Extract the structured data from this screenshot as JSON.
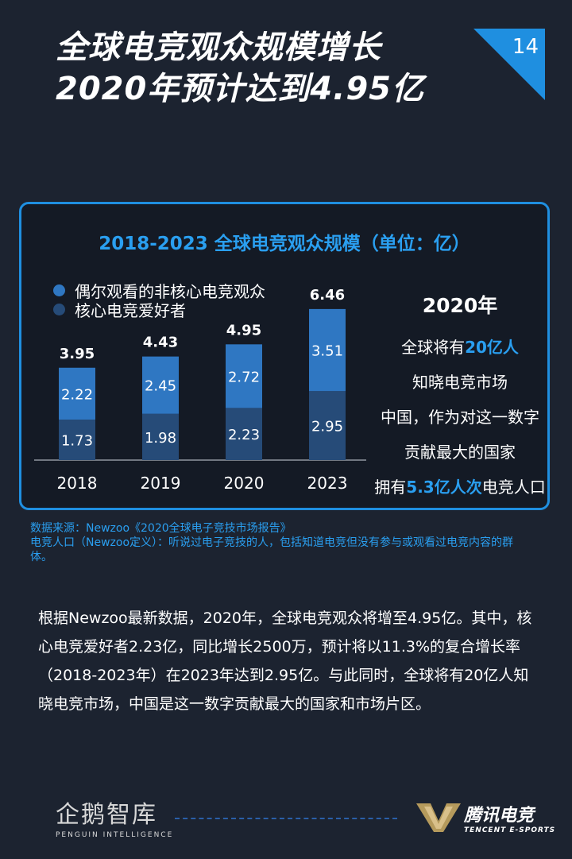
{
  "title": {
    "line1": "全球电竞观众规模增长",
    "line2": "2020年预计达到4.95亿"
  },
  "page_number": "14",
  "colors": {
    "accent": "#1f8fe0",
    "series_light": "#2f77c2",
    "series_dark": "#264b78",
    "background": "#1c2330"
  },
  "chart_data": {
    "type": "bar",
    "stacked": true,
    "title": "2018-2023 全球电竞观众规模（单位：亿）",
    "categories": [
      "2018",
      "2019",
      "2020",
      "2023"
    ],
    "series": [
      {
        "name": "核心电竞爱好者",
        "values": [
          1.73,
          1.98,
          2.23,
          2.95
        ]
      },
      {
        "name": "偶尔观看的非核心电竞观众",
        "values": [
          2.22,
          2.45,
          2.72,
          3.51
        ]
      }
    ],
    "totals": [
      3.95,
      4.43,
      4.95,
      6.46
    ],
    "value_labels": {
      "core": [
        "1.73",
        "1.98",
        "2.23",
        "2.95"
      ],
      "casual": [
        "2.22",
        "2.45",
        "2.72",
        "3.51"
      ],
      "totals": [
        "3.95",
        "4.43",
        "4.95",
        "6.46"
      ]
    },
    "legend": [
      "偶尔观看的非核心电竞观众",
      "核心电竞爱好者"
    ],
    "ylim": [
      0,
      7
    ]
  },
  "side_note": {
    "year": "2020年",
    "lines": [
      {
        "pre": "全球将有",
        "hl": "20亿人",
        "post": ""
      },
      {
        "pre": "知晓电竞市场",
        "hl": "",
        "post": ""
      },
      {
        "pre": "中国，作为对这一数字",
        "hl": "",
        "post": ""
      },
      {
        "pre": "贡献最大的国家",
        "hl": "",
        "post": ""
      },
      {
        "pre": "拥有",
        "hl": "5.3亿人次",
        "post": "电竞人口"
      }
    ]
  },
  "source": {
    "line1": "数据来源：Newzoo《2020全球电子竞技市场报告》",
    "line2": "电竞人口（Newzoo定义）：听说过电子竞技的人，包括知道电竞但没有参与或观看过电竞内容的群体。"
  },
  "body": "根据Newzoo最新数据，2020年，全球电竞观众将增至4.95亿。其中，核心电竞爱好者2.23亿，同比增长2500万，预计将以11.3%的复合增长率（2018-2023年）在2023年达到2.95亿。与此同时，全球将有20亿人知晓电竞市场，中国是这一数字贡献最大的国家和市场片区。",
  "footer": {
    "left_logo_cn": "企鹅智库",
    "left_logo_en": "PENGUIN INTELLIGENCE",
    "right_logo_cn": "腾讯电竞",
    "right_logo_en": "TENCENT E-SPORTS"
  }
}
